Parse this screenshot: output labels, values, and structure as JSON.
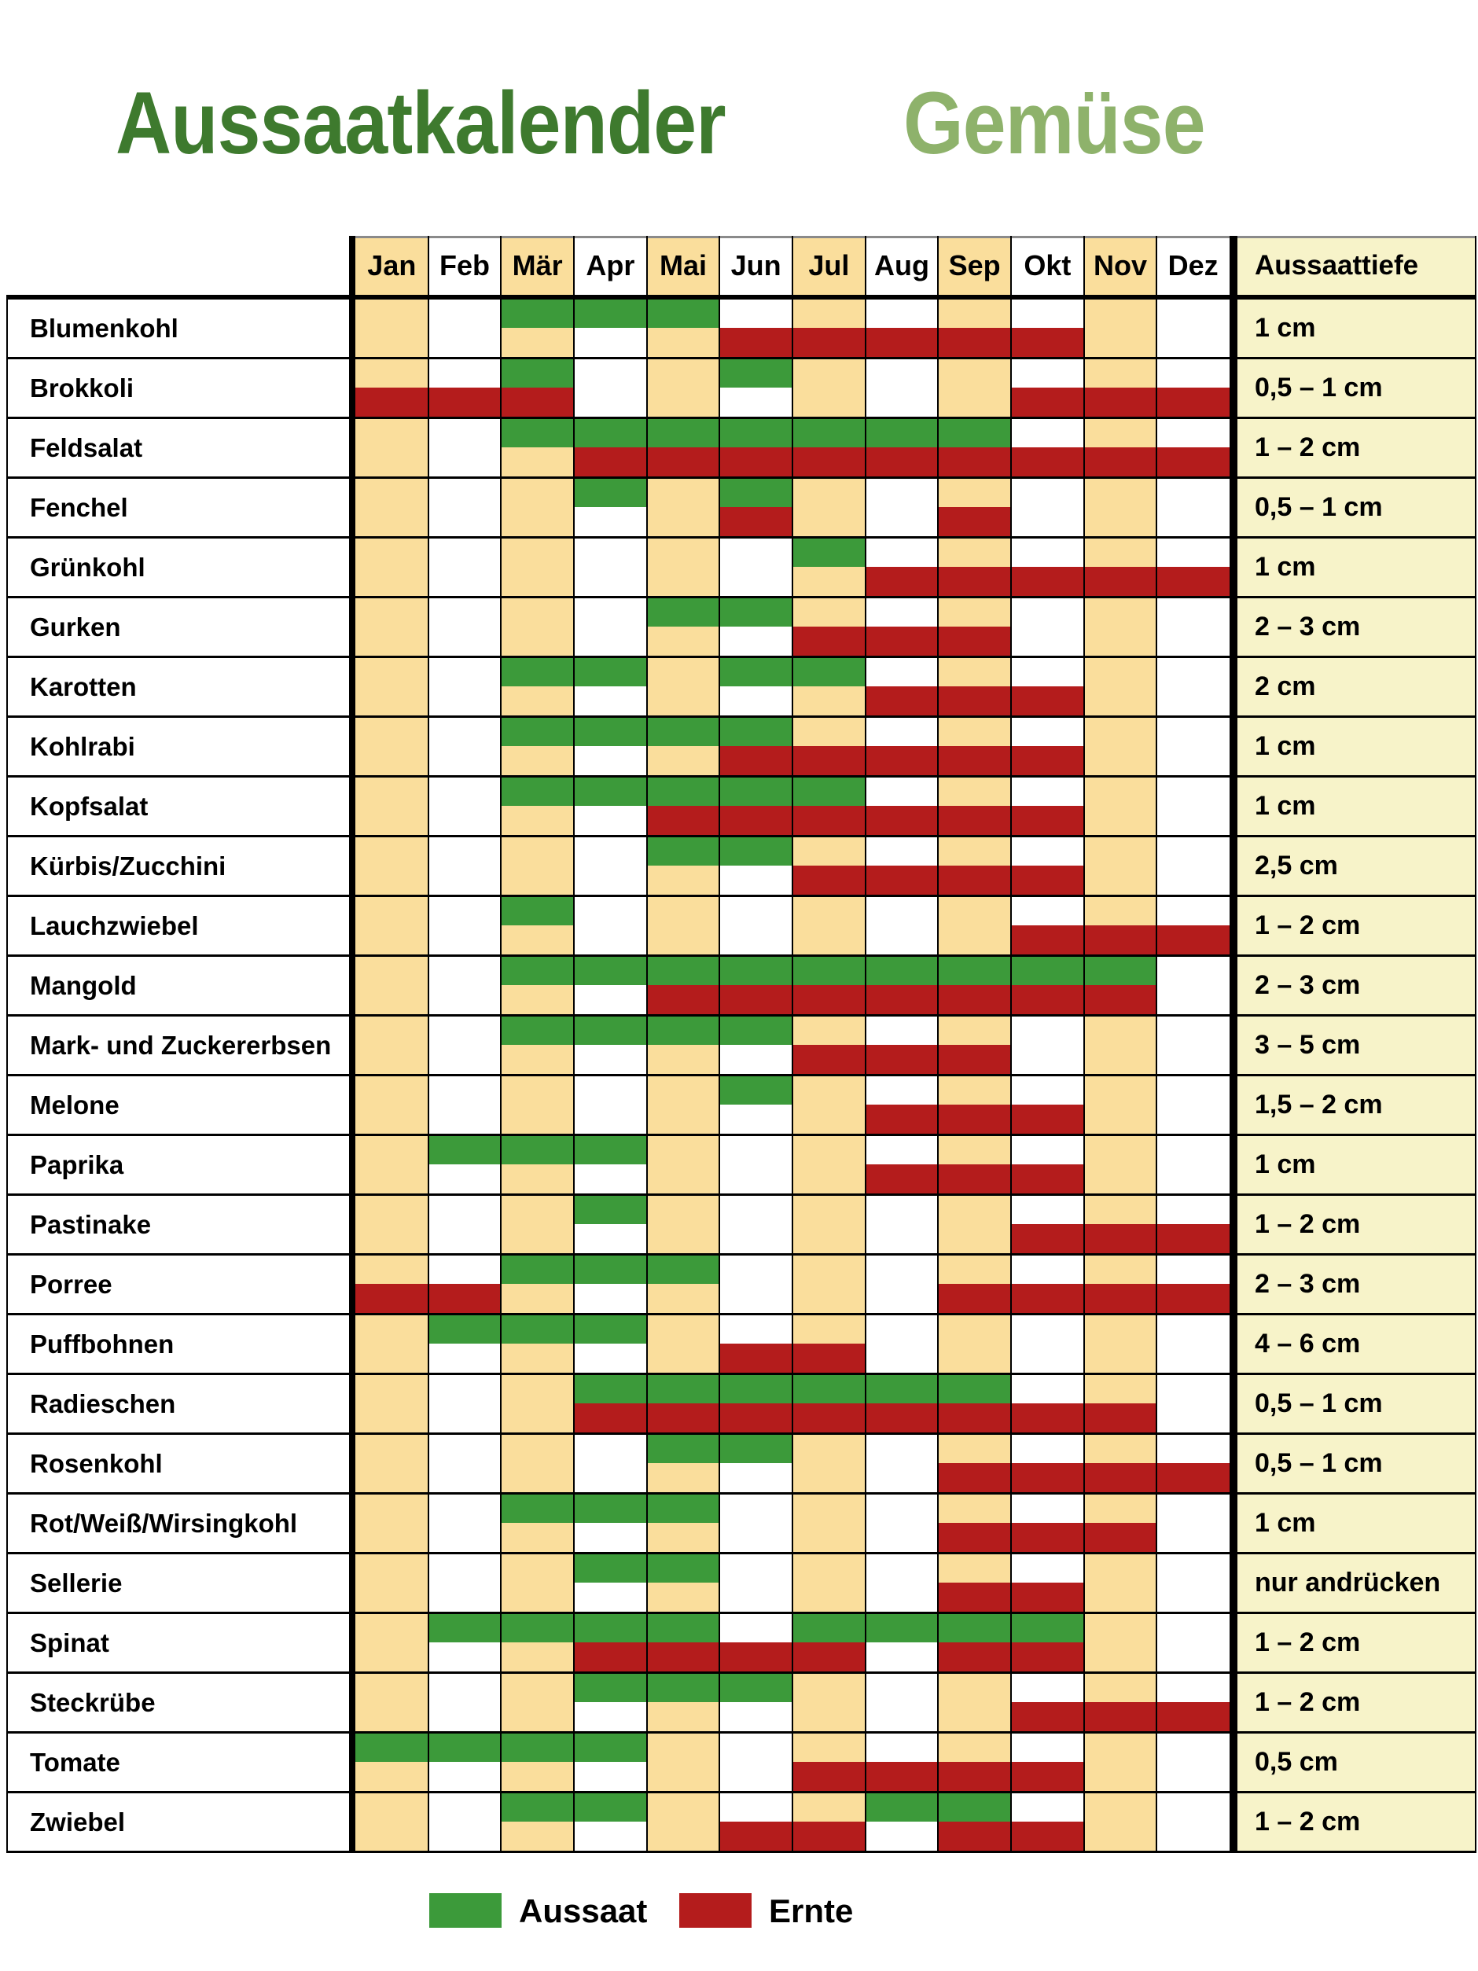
{
  "title": {
    "main": "Aussaatkalender",
    "sub": "Gemüse"
  },
  "colors": {
    "title_main": "#3E7A2E",
    "title_sub": "#8EB26B",
    "sow": "#3C9A3A",
    "harvest": "#B41C1C",
    "month_cream": "#FADE9C",
    "month_white": "#FFFFFF",
    "depth_bg": "#F7F3C9",
    "grid": "#000000"
  },
  "legend": {
    "items": [
      {
        "label": "Aussaat",
        "color": "#3C9A3A"
      },
      {
        "label": "Ernte",
        "color": "#B41C1C"
      }
    ]
  },
  "chart_data": {
    "type": "table",
    "title": "Aussaatkalender Gemüse",
    "months": [
      "Jan",
      "Feb",
      "Mär",
      "Apr",
      "Mai",
      "Jun",
      "Jul",
      "Aug",
      "Sep",
      "Okt",
      "Nov",
      "Dez"
    ],
    "depth_header": "Aussaattiefe",
    "series_legend": [
      "Aussaat",
      "Ernte"
    ],
    "rows": [
      {
        "label": "Blumenkohl",
        "sow": [
          [
            2,
            5
          ]
        ],
        "harvest": [
          [
            5,
            10
          ]
        ],
        "depth": "1 cm"
      },
      {
        "label": "Brokkoli",
        "sow": [
          [
            2,
            3
          ],
          [
            5,
            6
          ]
        ],
        "harvest": [
          [
            0,
            3
          ],
          [
            9,
            12
          ]
        ],
        "depth": "0,5 – 1 cm"
      },
      {
        "label": "Feldsalat",
        "sow": [
          [
            2,
            9
          ]
        ],
        "harvest": [
          [
            3,
            12
          ]
        ],
        "depth": "1 – 2 cm"
      },
      {
        "label": "Fenchel",
        "sow": [
          [
            3,
            4
          ],
          [
            5,
            6
          ]
        ],
        "harvest": [
          [
            5,
            6
          ],
          [
            8,
            9
          ]
        ],
        "depth": "0,5 – 1 cm"
      },
      {
        "label": "Grünkohl",
        "sow": [
          [
            6,
            7
          ]
        ],
        "harvest": [
          [
            7,
            12
          ]
        ],
        "depth": "1 cm"
      },
      {
        "label": "Gurken",
        "sow": [
          [
            4,
            6
          ]
        ],
        "harvest": [
          [
            6,
            9
          ]
        ],
        "depth": "2 – 3 cm"
      },
      {
        "label": "Karotten",
        "sow": [
          [
            2,
            4
          ],
          [
            5,
            7
          ]
        ],
        "harvest": [
          [
            7,
            10
          ]
        ],
        "depth": "2 cm"
      },
      {
        "label": "Kohlrabi",
        "sow": [
          [
            2,
            6
          ]
        ],
        "harvest": [
          [
            5,
            10
          ]
        ],
        "depth": "1 cm"
      },
      {
        "label": "Kopfsalat",
        "sow": [
          [
            2,
            7
          ]
        ],
        "harvest": [
          [
            4,
            10
          ]
        ],
        "depth": "1 cm"
      },
      {
        "label": "Kürbis/Zucchini",
        "sow": [
          [
            4,
            6
          ]
        ],
        "harvest": [
          [
            6,
            10
          ]
        ],
        "depth": "2,5 cm"
      },
      {
        "label": "Lauchzwiebel",
        "sow": [
          [
            2,
            3
          ]
        ],
        "harvest": [
          [
            9,
            12
          ]
        ],
        "depth": "1 – 2 cm"
      },
      {
        "label": "Mangold",
        "sow": [
          [
            2,
            11
          ]
        ],
        "harvest": [
          [
            4,
            11
          ]
        ],
        "depth": "2 – 3 cm"
      },
      {
        "label": "Mark- und Zuckererbsen",
        "sow": [
          [
            2,
            6
          ]
        ],
        "harvest": [
          [
            6,
            9
          ]
        ],
        "depth": "3 – 5 cm"
      },
      {
        "label": "Melone",
        "sow": [
          [
            5,
            6
          ]
        ],
        "harvest": [
          [
            7,
            10
          ]
        ],
        "depth": "1,5 – 2 cm"
      },
      {
        "label": "Paprika",
        "sow": [
          [
            1,
            4
          ]
        ],
        "harvest": [
          [
            7,
            10
          ]
        ],
        "depth": "1 cm"
      },
      {
        "label": "Pastinake",
        "sow": [
          [
            3,
            4
          ]
        ],
        "harvest": [
          [
            9,
            12
          ]
        ],
        "depth": "1 – 2 cm"
      },
      {
        "label": "Porree",
        "sow": [
          [
            2,
            5
          ]
        ],
        "harvest": [
          [
            0,
            2
          ],
          [
            8,
            12
          ]
        ],
        "depth": "2 – 3 cm"
      },
      {
        "label": "Puffbohnen",
        "sow": [
          [
            1,
            4
          ]
        ],
        "harvest": [
          [
            5,
            7
          ]
        ],
        "depth": "4 – 6 cm"
      },
      {
        "label": "Radieschen",
        "sow": [
          [
            3,
            9
          ]
        ],
        "harvest": [
          [
            3,
            11
          ]
        ],
        "depth": "0,5 – 1 cm"
      },
      {
        "label": "Rosenkohl",
        "sow": [
          [
            4,
            6
          ]
        ],
        "harvest": [
          [
            8,
            12
          ]
        ],
        "depth": "0,5 – 1 cm"
      },
      {
        "label": "Rot/Weiß/Wirsingkohl",
        "sow": [
          [
            2,
            5
          ]
        ],
        "harvest": [
          [
            8,
            11
          ]
        ],
        "depth": "1 cm"
      },
      {
        "label": "Sellerie",
        "sow": [
          [
            3,
            5
          ]
        ],
        "harvest": [
          [
            8,
            10
          ]
        ],
        "depth": "nur andrücken"
      },
      {
        "label": "Spinat",
        "sow": [
          [
            1,
            5
          ],
          [
            6,
            10
          ]
        ],
        "harvest": [
          [
            3,
            7
          ],
          [
            8,
            10
          ]
        ],
        "depth": "1 – 2 cm"
      },
      {
        "label": "Steckrübe",
        "sow": [
          [
            3,
            6
          ]
        ],
        "harvest": [
          [
            9,
            12
          ]
        ],
        "depth": "1 – 2 cm"
      },
      {
        "label": "Tomate",
        "sow": [
          [
            0,
            4
          ]
        ],
        "harvest": [
          [
            6,
            10
          ]
        ],
        "depth": "0,5 cm"
      },
      {
        "label": "Zwiebel",
        "sow": [
          [
            2,
            4
          ],
          [
            7,
            9
          ]
        ],
        "harvest": [
          [
            5,
            7
          ],
          [
            8,
            10
          ]
        ],
        "depth": "1 – 2 cm"
      }
    ]
  }
}
